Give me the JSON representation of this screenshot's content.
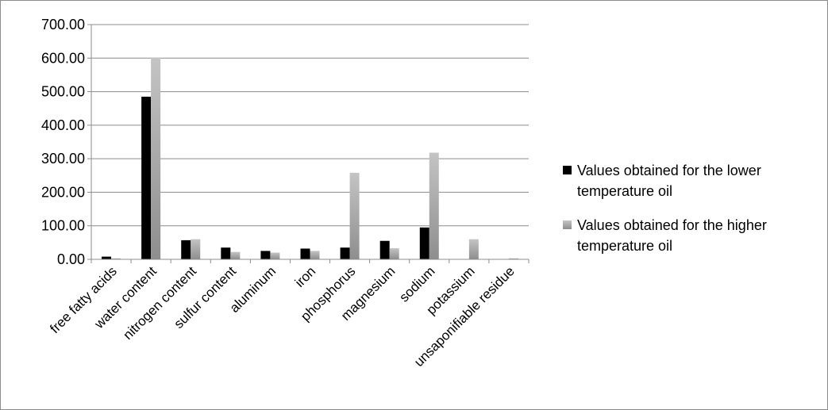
{
  "chart_data": {
    "type": "bar",
    "categories": [
      "free fatty acids",
      "water content",
      "nitrogen content",
      "sulfur content",
      "aluminum",
      "iron",
      "phosphorus",
      "magnesium",
      "sodium",
      "potassium",
      "unsaponifiable residue"
    ],
    "series": [
      {
        "name": "Values obtained for the lower temperature oil",
        "legend_lines": [
          "Values obtained for the lower",
          "temperature oil"
        ],
        "color": "#000000",
        "values": [
          8,
          485,
          57,
          35,
          25,
          32,
          35,
          55,
          95,
          0,
          0
        ]
      },
      {
        "name": "Values obtained for the higher temperature oil",
        "legend_lines": [
          "Values obtained for the higher",
          "temperature oil"
        ],
        "color": "#a6a6a6",
        "values": [
          3,
          602,
          60,
          22,
          20,
          25,
          258,
          33,
          318,
          60,
          3
        ]
      }
    ],
    "ylim": [
      0,
      700
    ],
    "yticks": [
      0,
      100,
      200,
      300,
      400,
      500,
      600,
      700
    ],
    "ytick_labels": [
      "0.00",
      "100.00",
      "200.00",
      "300.00",
      "400.00",
      "500.00",
      "600.00",
      "700.00"
    ],
    "grid": true,
    "legend": "right",
    "title": "",
    "xlabel": "",
    "ylabel": ""
  }
}
